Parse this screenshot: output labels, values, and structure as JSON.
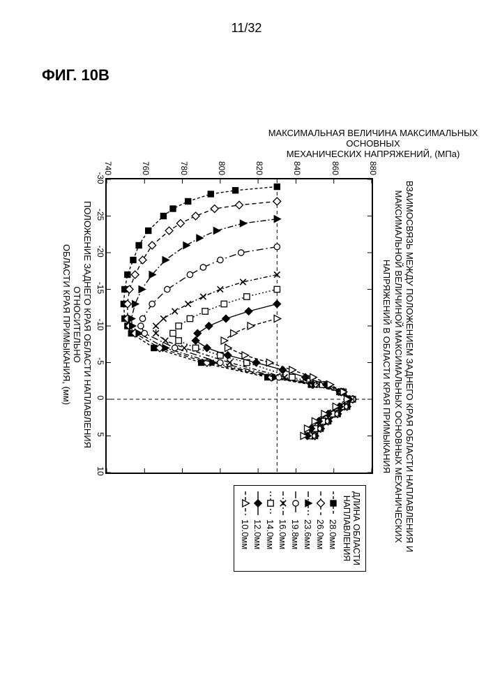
{
  "page": {
    "page_number": "11/32",
    "figure_label": "ФИГ. 10B"
  },
  "chart": {
    "type": "line",
    "title_lines": [
      "ВЗАИМОСВЯЗЬ МЕЖДУ ПОЛОЖЕНИЕМ ЗАДНЕГО КРАЯ ОБЛАСТИ НАПЛАВЛЕНИЯ И",
      "МАКСИМАЛЬНОЙ ВЕЛИЧИНОЙ МАКСИМАЛЬНЫХ ОСНОВНЫХ МЕХАНИЧЕСКИХ",
      "НАПРЯЖЕНИЙ В ОБЛАСТИ КРАЯ ПРИМЫКАНИЯ"
    ],
    "title_fontsize": 13,
    "xlabel_lines": [
      "ПОЛОЖЕНИЕ ЗАДНЕГО КРАЯ ОБЛАСТИ НАПЛАВЛЕНИЯ ОТНОСИТЕЛЬНО",
      "ОБЛАСТИ КРАЯ ПРИМЫКАНИЯ, (мм)"
    ],
    "ylabel_lines": [
      "МАКСИМАЛЬНАЯ ВЕЛИЧИНА МАКСИМАЛЬНЫХ ОСНОВНЫХ",
      "МЕХАНИЧЕСКИХ НАПРЯЖЕНИЙ, (МПа)"
    ],
    "legend_title": "ДЛИНА ОБЛАСТИ НАПЛАВЛЕНИЯ",
    "xlim": [
      -30,
      10
    ],
    "ylim": [
      740,
      880
    ],
    "xtick_step": 5,
    "ytick_step": 20,
    "xticks": [
      -30,
      -25,
      -20,
      -15,
      -10,
      -5,
      0,
      5,
      10
    ],
    "yticks": [
      740,
      760,
      780,
      800,
      820,
      840,
      860,
      880
    ],
    "ref_line_y": 830,
    "ref_line_x": 0,
    "background_color": "#ffffff",
    "axis_color": "#000000",
    "grid_color": "#000000",
    "series": [
      {
        "label": "28.0мм",
        "marker": "square-filled",
        "dash": "4 3",
        "color": "#000000",
        "points": [
          [
            -29,
            830
          ],
          [
            -28.5,
            808
          ],
          [
            -28,
            795
          ],
          [
            -27,
            783
          ],
          [
            -26,
            775
          ],
          [
            -25,
            770
          ],
          [
            -23,
            762
          ],
          [
            -21,
            757
          ],
          [
            -19,
            754
          ],
          [
            -17,
            751
          ],
          [
            -15,
            749.5
          ],
          [
            -13,
            749
          ],
          [
            -11,
            749.5
          ],
          [
            -10,
            751
          ],
          [
            -9,
            753
          ],
          [
            -7,
            765
          ],
          [
            -5,
            790
          ],
          [
            -3,
            825
          ],
          [
            -2,
            848
          ],
          [
            -1,
            863
          ],
          [
            0,
            870
          ],
          [
            1,
            867
          ],
          [
            2,
            862
          ],
          [
            3,
            857
          ],
          [
            4,
            853
          ],
          [
            5,
            850
          ]
        ]
      },
      {
        "label": "26.0мм",
        "marker": "diamond",
        "dash": "6 4",
        "color": "#000000",
        "points": [
          [
            -27,
            830
          ],
          [
            -26.5,
            810
          ],
          [
            -26,
            797
          ],
          [
            -25,
            787
          ],
          [
            -24,
            779
          ],
          [
            -23,
            773
          ],
          [
            -21,
            764
          ],
          [
            -19,
            759
          ],
          [
            -17,
            755
          ],
          [
            -15,
            752
          ],
          [
            -13,
            751
          ],
          [
            -11,
            751
          ],
          [
            -10,
            752
          ],
          [
            -9,
            755
          ],
          [
            -7,
            768
          ],
          [
            -5,
            793
          ],
          [
            -3,
            827
          ],
          [
            -2,
            849
          ],
          [
            -1,
            864
          ],
          [
            0,
            870
          ],
          [
            1,
            867
          ],
          [
            2,
            862
          ],
          [
            3,
            857
          ],
          [
            4,
            853
          ],
          [
            5,
            850
          ]
        ]
      },
      {
        "label": "23.6мм",
        "marker": "triangle-filled",
        "dash": "8 3 2 3",
        "color": "#000000",
        "points": [
          [
            -24.6,
            830
          ],
          [
            -24,
            812
          ],
          [
            -23,
            798
          ],
          [
            -22,
            789
          ],
          [
            -21,
            782
          ],
          [
            -19,
            771
          ],
          [
            -17,
            764
          ],
          [
            -15,
            758.5
          ],
          [
            -13,
            755
          ],
          [
            -11,
            753
          ],
          [
            -10,
            753.5
          ],
          [
            -9,
            757
          ],
          [
            -7,
            771
          ],
          [
            -5,
            796
          ],
          [
            -3,
            829
          ],
          [
            -2,
            850
          ],
          [
            -1,
            864
          ],
          [
            0,
            870
          ],
          [
            1,
            867
          ],
          [
            2,
            862
          ],
          [
            3,
            857
          ],
          [
            4,
            853
          ],
          [
            5,
            850
          ]
        ]
      },
      {
        "label": "19.8мм",
        "marker": "circle",
        "dash": "10 4 2 4",
        "color": "#000000",
        "points": [
          [
            -20.8,
            830
          ],
          [
            -20,
            811
          ],
          [
            -19,
            800
          ],
          [
            -18,
            791
          ],
          [
            -17,
            784
          ],
          [
            -15,
            772
          ],
          [
            -13,
            764
          ],
          [
            -11,
            759
          ],
          [
            -10,
            758
          ],
          [
            -9,
            760
          ],
          [
            -7,
            776
          ],
          [
            -5,
            800
          ],
          [
            -3,
            831
          ],
          [
            -2,
            851
          ],
          [
            -1,
            864
          ],
          [
            0,
            870
          ],
          [
            1,
            866
          ],
          [
            2,
            861
          ],
          [
            3,
            856
          ],
          [
            4,
            852
          ],
          [
            5,
            849
          ]
        ]
      },
      {
        "label": "16.0мм",
        "marker": "x",
        "dash": "6 3 2 3",
        "color": "#000000",
        "points": [
          [
            -17,
            830
          ],
          [
            -16,
            812
          ],
          [
            -15,
            800
          ],
          [
            -14,
            791
          ],
          [
            -13,
            783
          ],
          [
            -12,
            776
          ],
          [
            -11,
            770
          ],
          [
            -10,
            766
          ],
          [
            -9,
            766
          ],
          [
            -8,
            771
          ],
          [
            -7,
            781
          ],
          [
            -5,
            805
          ],
          [
            -3,
            834
          ],
          [
            -2,
            852
          ],
          [
            -1,
            864
          ],
          [
            0,
            869
          ],
          [
            1,
            865
          ],
          [
            2,
            860
          ],
          [
            3,
            855
          ],
          [
            4,
            851
          ],
          [
            5,
            848
          ]
        ]
      },
      {
        "label": "14.0мм",
        "marker": "square",
        "dash": "2 3",
        "color": "#000000",
        "points": [
          [
            -15,
            830
          ],
          [
            -14,
            814
          ],
          [
            -13,
            802
          ],
          [
            -12,
            792
          ],
          [
            -11,
            784
          ],
          [
            -10,
            778
          ],
          [
            -9,
            775
          ],
          [
            -8,
            778
          ],
          [
            -7,
            787
          ],
          [
            -6,
            800
          ],
          [
            -5,
            814
          ],
          [
            -3,
            838
          ],
          [
            -2,
            854
          ],
          [
            -1,
            865
          ],
          [
            0,
            869
          ],
          [
            1,
            864
          ],
          [
            2,
            859
          ],
          [
            3,
            854
          ],
          [
            4,
            850
          ],
          [
            5,
            847
          ]
        ]
      },
      {
        "label": "12.0мм",
        "marker": "diamond-filled",
        "dash": "none",
        "color": "#000000",
        "points": [
          [
            -13,
            830
          ],
          [
            -12,
            815
          ],
          [
            -11,
            803
          ],
          [
            -10,
            794
          ],
          [
            -9,
            788
          ],
          [
            -8,
            787
          ],
          [
            -7,
            793
          ],
          [
            -6,
            804
          ],
          [
            -5,
            819
          ],
          [
            -4,
            833
          ],
          [
            -3,
            845
          ],
          [
            -2,
            856
          ],
          [
            -1,
            865
          ],
          [
            0,
            868
          ],
          [
            1,
            863
          ],
          [
            2,
            857
          ],
          [
            3,
            852
          ],
          [
            4,
            848
          ],
          [
            5,
            846
          ]
        ]
      },
      {
        "label": "10.0мм",
        "marker": "triangle",
        "dash": "5 3",
        "color": "#000000",
        "points": [
          [
            -11,
            830
          ],
          [
            -10,
            816
          ],
          [
            -9,
            807
          ],
          [
            -8,
            802
          ],
          [
            -7,
            804
          ],
          [
            -6,
            813
          ],
          [
            -5,
            826
          ],
          [
            -4,
            838
          ],
          [
            -3,
            849
          ],
          [
            -2,
            858
          ],
          [
            -1,
            865
          ],
          [
            0,
            867
          ],
          [
            1,
            861
          ],
          [
            2,
            855
          ],
          [
            3,
            850
          ],
          [
            4,
            846
          ],
          [
            5,
            844
          ]
        ]
      }
    ]
  }
}
